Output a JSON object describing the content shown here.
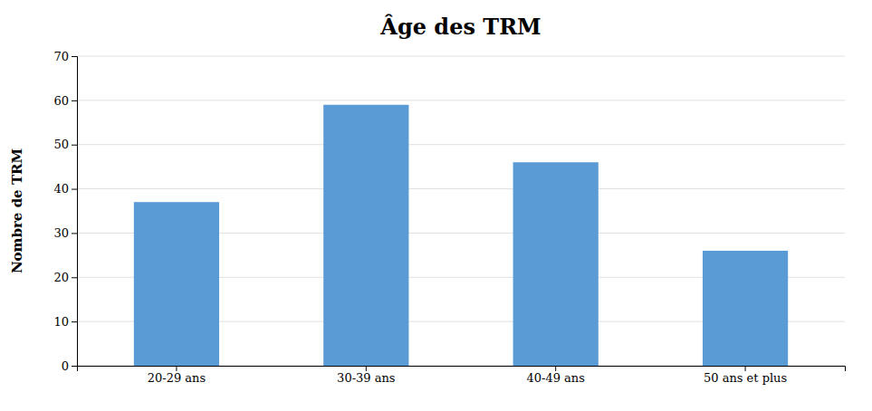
{
  "chart_data": {
    "type": "bar",
    "title": "Âge des TRM",
    "ylabel": "Nombre de TRM",
    "categories": [
      "20-29 ans",
      "30-39 ans",
      "40-49 ans",
      "50 ans et plus"
    ],
    "values": [
      37,
      59,
      46,
      26
    ],
    "color": "#5B9BD5",
    "ylim": [
      0,
      70
    ],
    "yticks": [
      0,
      10,
      20,
      30,
      40,
      50,
      60,
      70
    ],
    "grid": true
  }
}
